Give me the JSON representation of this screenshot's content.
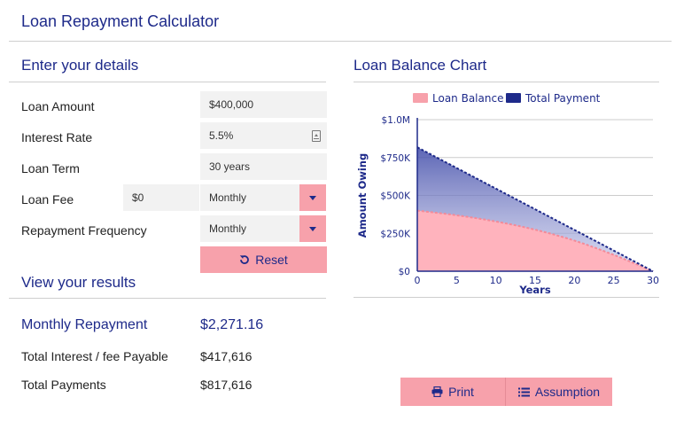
{
  "app": {
    "title": "Loan Repayment Calculator"
  },
  "details": {
    "heading": "Enter your details",
    "loan_amount": {
      "label": "Loan Amount",
      "value": "$400,000"
    },
    "interest_rate": {
      "label": "Interest Rate",
      "value": "5.5%"
    },
    "loan_term": {
      "label": "Loan Term",
      "value": "30 years"
    },
    "loan_fee": {
      "label": "Loan Fee",
      "value": "$0",
      "frequency": "Monthly"
    },
    "repayment_frequency": {
      "label": "Repayment Frequency",
      "value": "Monthly"
    },
    "reset_label": "Reset"
  },
  "results": {
    "heading": "View your results",
    "monthly_repayment": {
      "label": "Monthly Repayment",
      "value": "$2,271.16"
    },
    "total_interest": {
      "label": "Total Interest / fee Payable",
      "value": "$417,616"
    },
    "total_payments": {
      "label": "Total Payments",
      "value": "$817,616"
    }
  },
  "chart_panel": {
    "heading": "Loan Balance Chart",
    "print_label": "Print",
    "assumption_label": "Assumption"
  },
  "colors": {
    "accent": "#1e2a8a",
    "pink": "#f7a1ab"
  },
  "chart_data": {
    "type": "area",
    "xlabel": "Years",
    "ylabel": "Amount Owing",
    "xlim": [
      0,
      30
    ],
    "ylim": [
      0,
      1000000
    ],
    "x_ticks": [
      0,
      5,
      10,
      15,
      20,
      25,
      30
    ],
    "y_ticks": [
      {
        "value": 0,
        "label": "$0"
      },
      {
        "value": 250000,
        "label": "$250K"
      },
      {
        "value": 500000,
        "label": "$500K"
      },
      {
        "value": 750000,
        "label": "$750K"
      },
      {
        "value": 1000000,
        "label": "$1.0M"
      }
    ],
    "grid": true,
    "legend_position": "top",
    "series": [
      {
        "name": "Loan Balance",
        "color": "#f7a1ab",
        "x": [
          0,
          5,
          10,
          15,
          20,
          25,
          30
        ],
        "values": [
          400000,
          369000,
          328000,
          274000,
          202000,
          108000,
          0
        ]
      },
      {
        "name": "Total Payment",
        "color": "#1e2a8a",
        "x": [
          0,
          5,
          10,
          15,
          20,
          25,
          30
        ],
        "values": [
          817616,
          681347,
          545077,
          408808,
          272539,
          136269,
          0
        ]
      }
    ]
  }
}
